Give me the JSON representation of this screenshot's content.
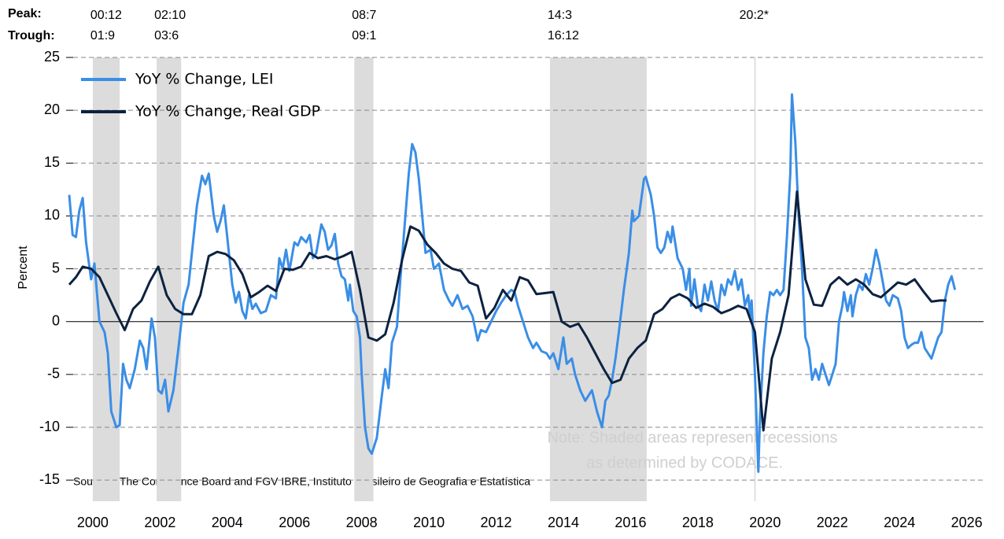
{
  "chart_data": {
    "type": "line",
    "y_label": "Percent",
    "peak_title": "Peak:",
    "trough_title": "Trough:",
    "peak_labels": [
      "00:12",
      "02:10",
      "08:7",
      "14:3",
      "20:2*"
    ],
    "trough_labels": [
      "01:9",
      "03:6",
      "09:1",
      "16:12"
    ],
    "recessions": [
      [
        2000.5,
        2001.3
      ],
      [
        2002.4,
        2003.13
      ],
      [
        2008.28,
        2008.85
      ],
      [
        2014.1,
        2016.98
      ],
      [
        2020.18,
        2020.22
      ]
    ],
    "note": [
      "Note: Shaded areas represent recessions",
      "as determined by CODACE."
    ],
    "source": "Sources: The Conference Board and FGV IBRE, Instituto Brasileiro de Geografia e Estatística",
    "xlim": [
      1999.8,
      2027
    ],
    "xticks": [
      {
        "value": 2000.5,
        "label": "2000"
      },
      {
        "value": 2002.5,
        "label": "2002"
      },
      {
        "value": 2004.5,
        "label": "2004"
      },
      {
        "value": 2006.5,
        "label": "2006"
      },
      {
        "value": 2008.5,
        "label": "2008"
      },
      {
        "value": 2010.5,
        "label": "2010"
      },
      {
        "value": 2012.5,
        "label": "2012"
      },
      {
        "value": 2014.5,
        "label": "2014"
      },
      {
        "value": 2016.5,
        "label": "2016"
      },
      {
        "value": 2018.5,
        "label": "2018"
      },
      {
        "value": 2020.5,
        "label": "2020"
      },
      {
        "value": 2022.5,
        "label": "2022"
      },
      {
        "value": 2024.5,
        "label": "2024"
      },
      {
        "value": 2026.5,
        "label": "2026"
      }
    ],
    "ylim": [
      -17,
      25
    ],
    "yticks": [
      -15,
      -10,
      -5,
      0,
      5,
      10,
      15,
      20,
      25
    ],
    "grid": true,
    "legend": "top-left",
    "series": [
      {
        "name": "YoY % Change, LEI",
        "color": "#3a8ee6",
        "x": [
          1999.8,
          1999.9,
          2000.0,
          2000.1,
          2000.2,
          2000.3,
          2000.45,
          2000.55,
          2000.7,
          2000.85,
          2000.95,
          2001.05,
          2001.2,
          2001.3,
          2001.4,
          2001.5,
          2001.6,
          2001.75,
          2001.9,
          2002.0,
          2002.1,
          2002.25,
          2002.35,
          2002.45,
          2002.55,
          2002.65,
          2002.75,
          2002.9,
          2003.05,
          2003.2,
          2003.35,
          2003.45,
          2003.6,
          2003.75,
          2003.85,
          2003.95,
          2004.1,
          2004.2,
          2004.3,
          2004.4,
          2004.5,
          2004.65,
          2004.75,
          2004.85,
          2004.95,
          2005.05,
          2005.15,
          2005.25,
          2005.35,
          2005.5,
          2005.65,
          2005.8,
          2005.95,
          2006.05,
          2006.15,
          2006.25,
          2006.35,
          2006.5,
          2006.6,
          2006.7,
          2006.85,
          2006.95,
          2007.05,
          2007.15,
          2007.3,
          2007.4,
          2007.5,
          2007.6,
          2007.7,
          2007.8,
          2007.9,
          2008.0,
          2008.1,
          2008.15,
          2008.25,
          2008.35,
          2008.45,
          2008.5,
          2008.6,
          2008.7,
          2008.8,
          2008.95,
          2009.1,
          2009.2,
          2009.3,
          2009.4,
          2009.55,
          2009.65,
          2009.75,
          2009.9,
          2010.0,
          2010.1,
          2010.2,
          2010.3,
          2010.4,
          2010.55,
          2010.65,
          2010.8,
          2010.95,
          2011.1,
          2011.2,
          2011.35,
          2011.5,
          2011.65,
          2011.8,
          2011.95,
          2012.05,
          2012.2,
          2012.35,
          2012.5,
          2012.65,
          2012.8,
          2012.95,
          2013.05,
          2013.15,
          2013.3,
          2013.45,
          2013.6,
          2013.7,
          2013.85,
          2014.0,
          2014.1,
          2014.2,
          2014.35,
          2014.5,
          2014.6,
          2014.75,
          2014.85,
          2015.0,
          2015.15,
          2015.25,
          2015.35,
          2015.5,
          2015.65,
          2015.75,
          2015.85,
          2015.95,
          2016.05,
          2016.15,
          2016.3,
          2016.45,
          2016.55,
          2016.6,
          2016.75,
          2016.9,
          2016.95,
          2017.1,
          2017.2,
          2017.3,
          2017.4,
          2017.5,
          2017.6,
          2017.7,
          2017.75,
          2017.9,
          2018.05,
          2018.15,
          2018.25,
          2018.3,
          2018.4,
          2018.5,
          2018.6,
          2018.7,
          2018.8,
          2018.9,
          2019.0,
          2019.1,
          2019.2,
          2019.3,
          2019.4,
          2019.5,
          2019.6,
          2019.7,
          2019.8,
          2019.9,
          2020.0,
          2020.05,
          2020.1,
          2020.2,
          2020.3,
          2020.35,
          2020.45,
          2020.55,
          2020.65,
          2020.75,
          2020.85,
          2020.95,
          2021.05,
          2021.15,
          2021.25,
          2021.3,
          2021.4,
          2021.5,
          2021.6,
          2021.7,
          2021.8,
          2021.9,
          2022.0,
          2022.1,
          2022.2,
          2022.3,
          2022.4,
          2022.5,
          2022.6,
          2022.7,
          2022.8,
          2022.85,
          2022.95,
          2023.05,
          2023.1,
          2023.2,
          2023.3,
          2023.4,
          2023.5,
          2023.6,
          2023.7,
          2023.8,
          2023.9,
          2024.0,
          2024.1,
          2024.2,
          2024.3,
          2024.45,
          2024.55,
          2024.65,
          2024.75,
          2024.85,
          2024.95,
          2025.05,
          2025.15,
          2025.25,
          2025.35,
          2025.45,
          2025.55,
          2025.65,
          2025.75,
          2025.85,
          2025.95,
          2026.05,
          2026.15
        ],
        "values": [
          12,
          8.2,
          8.0,
          10.5,
          11.7,
          7.5,
          4.0,
          5.5,
          0.0,
          -1.0,
          -3,
          -8.5,
          -10.0,
          -9.8,
          -4.0,
          -5.5,
          -6.3,
          -4.5,
          -1.8,
          -2.5,
          -4.5,
          0.3,
          -1.5,
          -6.5,
          -6.8,
          -5.5,
          -8.5,
          -6.5,
          -2.5,
          1.8,
          3.5,
          6.5,
          11,
          13.8,
          13.0,
          14.0,
          10,
          8.5,
          9.5,
          11,
          8,
          3.5,
          1.8,
          2.8,
          1,
          0.3,
          2.5,
          1.2,
          1.7,
          0.8,
          1.0,
          2.5,
          2.2,
          6,
          5,
          6.8,
          4.8,
          7.5,
          7.2,
          8.0,
          7.5,
          8.2,
          6,
          6.5,
          9.2,
          8.5,
          6.8,
          7.2,
          8.3,
          5.5,
          4.3,
          4.0,
          2.0,
          3.5,
          1.0,
          0.5,
          -1.5,
          -5,
          -10,
          -12,
          -12.5,
          -11,
          -7,
          -4.5,
          -6.3,
          -2,
          -0.5,
          4,
          8,
          14,
          16.8,
          16,
          13.5,
          10,
          6.5,
          6.8,
          5.0,
          5.5,
          3,
          2,
          1.5,
          2.5,
          1.2,
          1.5,
          0.5,
          -1.8,
          -0.8,
          -1,
          0,
          1,
          1.8,
          2.5,
          3.0,
          2.8,
          1.5,
          0,
          -1.5,
          -2.5,
          -2.0,
          -2.8,
          -3.0,
          -3.5,
          -3.0,
          -4.5,
          -1.5,
          -4,
          -3.5,
          -5,
          -6.5,
          -7.5,
          -7.0,
          -6.5,
          -8.5,
          -10.0,
          -7.5,
          -7,
          -5.5,
          -3.5,
          -1,
          3,
          6.5,
          10.5,
          9.5,
          10,
          13.5,
          13.7,
          12,
          10,
          7,
          6.5,
          7,
          8.5,
          7.5,
          9.0,
          6,
          5,
          3,
          5,
          1.5,
          4,
          1.5,
          1.0,
          3.5,
          2,
          3.8,
          2.0,
          1.0,
          3.5,
          2.5,
          4,
          3.5,
          4.8,
          3,
          4.0,
          1.5,
          2.5,
          0.5,
          2,
          -5,
          -14.2,
          -9,
          -3,
          0.5,
          2.8,
          2.5,
          3,
          2.5,
          3,
          8,
          14,
          21.5,
          17,
          10,
          5,
          -1.5,
          -2.5,
          -5.5,
          -4.5,
          -5.5,
          -4.0,
          -5,
          -6,
          -5,
          -4,
          0,
          1.5,
          2.8,
          1,
          2.5,
          0.5,
          2.5,
          3.5,
          3,
          4.5,
          3.5,
          5,
          6.8,
          5.5,
          3.8,
          2,
          1.5,
          2.5,
          2.2,
          1,
          -1.5,
          -2.5,
          -2.2,
          -2.0,
          -2.0,
          -1.0,
          -2.5,
          -3,
          -3.5,
          -2.5,
          -1.5,
          -1,
          2,
          3.5,
          4.3,
          3.0
        ]
      },
      {
        "name": "YoY % Change, Real GDP",
        "color": "#0d2240",
        "x": [
          1999.8,
          2000.0,
          2000.2,
          2000.45,
          2000.7,
          2000.95,
          2001.2,
          2001.45,
          2001.7,
          2001.95,
          2002.2,
          2002.45,
          2002.7,
          2002.95,
          2003.2,
          2003.45,
          2003.7,
          2003.95,
          2004.2,
          2004.45,
          2004.7,
          2004.95,
          2005.2,
          2005.45,
          2005.7,
          2005.95,
          2006.2,
          2006.45,
          2006.7,
          2006.95,
          2007.2,
          2007.45,
          2007.7,
          2007.95,
          2008.2,
          2008.45,
          2008.7,
          2008.95,
          2009.2,
          2009.45,
          2009.7,
          2009.95,
          2010.2,
          2010.45,
          2010.7,
          2010.95,
          2011.2,
          2011.45,
          2011.7,
          2011.95,
          2012.2,
          2012.45,
          2012.7,
          2012.95,
          2013.2,
          2013.45,
          2013.7,
          2013.95,
          2014.2,
          2014.45,
          2014.7,
          2014.95,
          2015.2,
          2015.45,
          2015.7,
          2015.95,
          2016.2,
          2016.45,
          2016.7,
          2016.95,
          2017.2,
          2017.45,
          2017.7,
          2017.95,
          2018.2,
          2018.45,
          2018.7,
          2018.95,
          2019.2,
          2019.45,
          2019.7,
          2019.95,
          2020.2,
          2020.45,
          2020.7,
          2020.95,
          2021.2,
          2021.45,
          2021.7,
          2021.95,
          2022.2,
          2022.45,
          2022.7,
          2022.95,
          2023.2,
          2023.45,
          2023.7,
          2023.95,
          2024.2,
          2024.45,
          2024.7,
          2024.95,
          2025.2,
          2025.45,
          2025.7,
          2025.9
        ],
        "values": [
          3.5,
          4.2,
          5.2,
          5.0,
          4.2,
          2.5,
          0.8,
          -0.8,
          1.2,
          2.0,
          3.8,
          5.2,
          2.5,
          1.2,
          0.7,
          0.7,
          2.5,
          6.2,
          6.6,
          6.4,
          5.8,
          4.5,
          2.3,
          2.8,
          3.4,
          2.9,
          5.0,
          4.9,
          5.2,
          6.5,
          6.0,
          6.2,
          5.9,
          6.2,
          6.6,
          3.0,
          -1.5,
          -1.8,
          -1.2,
          1.8,
          5.8,
          9.0,
          8.6,
          7.3,
          6.5,
          5.5,
          5.0,
          4.8,
          3.7,
          3.4,
          0.3,
          1.3,
          3.0,
          2.0,
          4.2,
          3.9,
          2.6,
          2.7,
          2.8,
          0,
          -0.5,
          -0.2,
          -1.5,
          -3.0,
          -4.5,
          -5.8,
          -5.5,
          -3.5,
          -2.5,
          -1.8,
          0.7,
          1.2,
          2.2,
          2.6,
          2.2,
          1.3,
          1.7,
          1.4,
          0.8,
          1.1,
          1.5,
          1.2,
          -1.0,
          -10.3,
          -3.5,
          -1.0,
          2.5,
          12.3,
          4.0,
          1.6,
          1.5,
          3.5,
          4.2,
          3.5,
          4.0,
          3.5,
          2.6,
          2.3,
          3.0,
          3.7,
          3.5,
          4.0,
          2.9,
          1.9,
          2.0,
          2.0
        ]
      }
    ]
  }
}
